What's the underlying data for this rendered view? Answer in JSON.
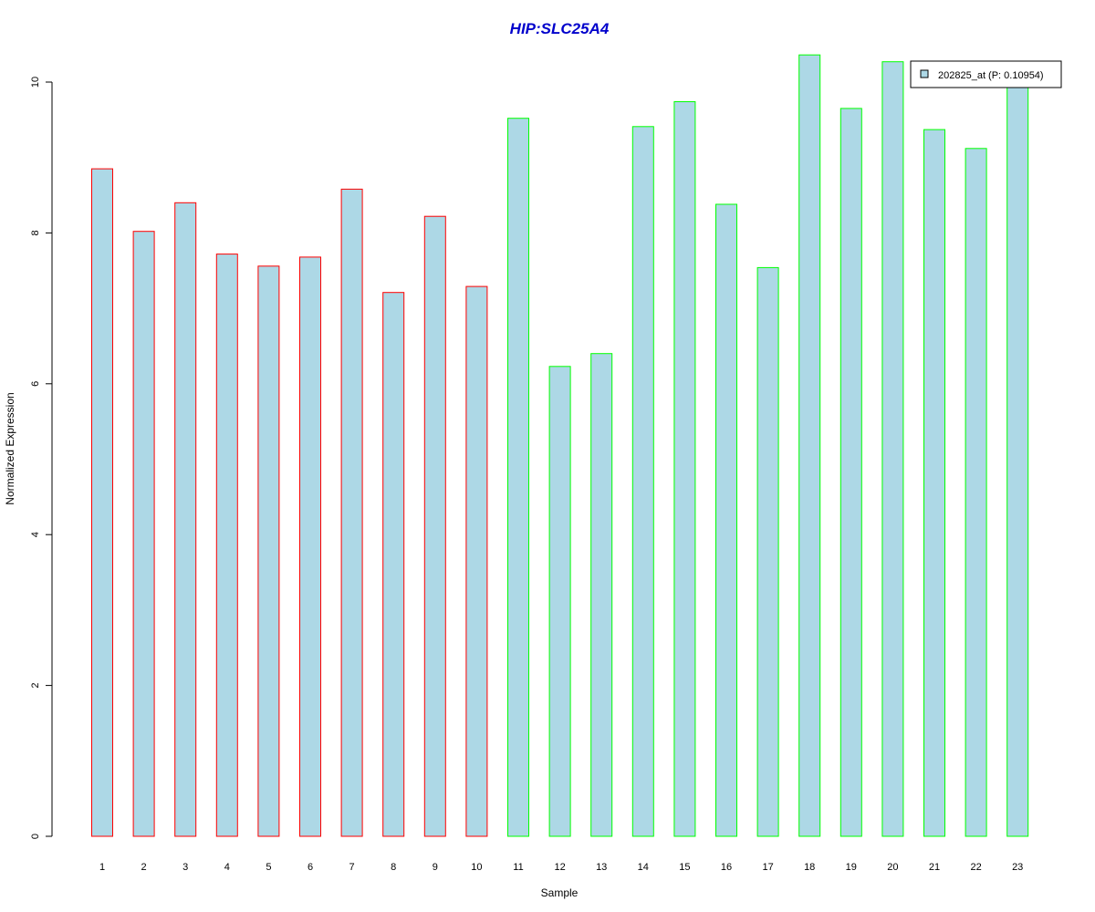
{
  "chart_data": {
    "type": "bar",
    "title": "HIP:SLC25A4",
    "xlabel": "Sample",
    "ylabel": "Normalized Expression",
    "ylim": [
      0,
      10
    ],
    "yticks": [
      0,
      2,
      4,
      6,
      8,
      10
    ],
    "grid": false,
    "categories": [
      "1",
      "2",
      "3",
      "4",
      "5",
      "6",
      "7",
      "8",
      "9",
      "10",
      "11",
      "12",
      "13",
      "14",
      "15",
      "16",
      "17",
      "18",
      "19",
      "20",
      "21",
      "22",
      "23"
    ],
    "series": [
      {
        "name": "202825_at (P: 0.10954)",
        "fill": "#add8e6",
        "values": [
          8.85,
          8.02,
          8.4,
          7.72,
          7.56,
          7.68,
          8.58,
          7.21,
          8.22,
          7.29,
          9.52,
          6.23,
          6.4,
          9.41,
          9.74,
          8.38,
          7.54,
          10.36,
          9.65,
          10.27,
          9.37,
          9.12,
          9.95
        ]
      }
    ],
    "bar_border_colors": [
      "#ff0000",
      "#ff0000",
      "#ff0000",
      "#ff0000",
      "#ff0000",
      "#ff0000",
      "#ff0000",
      "#ff0000",
      "#ff0000",
      "#ff0000",
      "#00ff00",
      "#00ff00",
      "#00ff00",
      "#00ff00",
      "#00ff00",
      "#00ff00",
      "#00ff00",
      "#00ff00",
      "#00ff00",
      "#00ff00",
      "#00ff00",
      "#00ff00",
      "#00ff00"
    ],
    "title_color": "#0000cc",
    "legend": {
      "position": "top-right",
      "label": "202825_at (P: 0.10954)"
    }
  }
}
